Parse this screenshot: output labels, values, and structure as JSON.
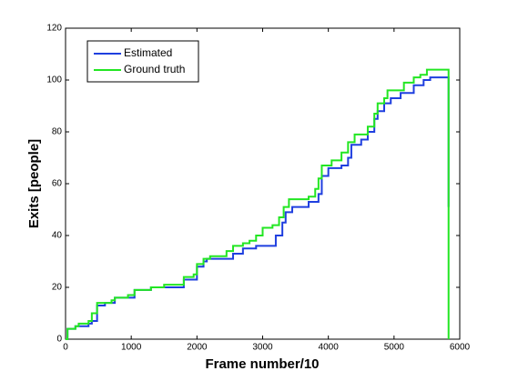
{
  "chart_data": {
    "type": "line",
    "xlabel": "Frame number/10",
    "ylabel": "Exits [people]",
    "xlim": [
      0,
      6000
    ],
    "ylim": [
      0,
      120
    ],
    "xticks": [
      0,
      1000,
      2000,
      3000,
      4000,
      5000,
      6000
    ],
    "yticks": [
      0,
      20,
      40,
      60,
      80,
      100,
      120
    ],
    "legend": "upper left",
    "series": [
      {
        "name": "Estimated",
        "color": "#1f3fdf",
        "x": [
          0,
          30,
          30,
          150,
          150,
          350,
          350,
          400,
          400,
          480,
          480,
          600,
          600,
          750,
          750,
          1050,
          1050,
          1300,
          1300,
          1800,
          1800,
          2000,
          2000,
          2100,
          2100,
          2150,
          2150,
          2550,
          2550,
          2700,
          2700,
          2900,
          2900,
          3200,
          3200,
          3300,
          3300,
          3350,
          3350,
          3450,
          3450,
          3700,
          3700,
          3850,
          3850,
          3900,
          3900,
          4000,
          4000,
          4200,
          4200,
          4300,
          4300,
          4350,
          4350,
          4500,
          4500,
          4600,
          4600,
          4700,
          4700,
          4750,
          4750,
          4850,
          4850,
          4950,
          4950,
          5100,
          5100,
          5300,
          5300,
          5450,
          5450,
          5550,
          5550,
          5830,
          5830
        ],
        "values": [
          0,
          0,
          4,
          4,
          5,
          5,
          6,
          6,
          7,
          7,
          13,
          13,
          14,
          14,
          16,
          16,
          19,
          19,
          20,
          20,
          23,
          23,
          28,
          28,
          30,
          30,
          31,
          31,
          33,
          33,
          35,
          35,
          36,
          36,
          40,
          40,
          45,
          45,
          49,
          49,
          51,
          51,
          53,
          53,
          56,
          56,
          63,
          63,
          66,
          66,
          67,
          67,
          70,
          70,
          75,
          75,
          77,
          77,
          80,
          80,
          85,
          85,
          88,
          88,
          91,
          91,
          93,
          93,
          95,
          95,
          98,
          98,
          100,
          100,
          101,
          101,
          51
        ]
      },
      {
        "name": "Ground truth",
        "color": "#22e622",
        "x": [
          0,
          30,
          30,
          150,
          150,
          200,
          200,
          350,
          350,
          400,
          400,
          480,
          480,
          700,
          700,
          750,
          750,
          950,
          950,
          1050,
          1050,
          1300,
          1300,
          1500,
          1500,
          1800,
          1800,
          1950,
          1950,
          2000,
          2000,
          2100,
          2100,
          2200,
          2200,
          2450,
          2450,
          2550,
          2550,
          2700,
          2700,
          2800,
          2800,
          2900,
          2900,
          3000,
          3000,
          3150,
          3150,
          3250,
          3250,
          3320,
          3320,
          3400,
          3400,
          3700,
          3700,
          3800,
          3800,
          3850,
          3850,
          3900,
          3900,
          4050,
          4050,
          4200,
          4200,
          4300,
          4300,
          4400,
          4400,
          4600,
          4600,
          4700,
          4700,
          4750,
          4750,
          4850,
          4850,
          4900,
          4900,
          5150,
          5150,
          5300,
          5300,
          5400,
          5400,
          5500,
          5500,
          5830,
          5830
        ],
        "values": [
          0,
          0,
          4,
          4,
          5,
          5,
          6,
          6,
          7,
          7,
          10,
          10,
          14,
          14,
          15,
          15,
          16,
          16,
          17,
          17,
          19,
          19,
          20,
          20,
          21,
          21,
          24,
          24,
          25,
          25,
          29,
          29,
          31,
          31,
          32,
          32,
          34,
          34,
          36,
          36,
          37,
          37,
          38,
          38,
          40,
          40,
          43,
          43,
          44,
          44,
          47,
          47,
          51,
          51,
          54,
          54,
          55,
          55,
          58,
          58,
          62,
          62,
          67,
          67,
          69,
          69,
          72,
          72,
          76,
          76,
          79,
          79,
          82,
          82,
          87,
          87,
          91,
          91,
          93,
          93,
          96,
          96,
          99,
          99,
          101,
          101,
          102,
          102,
          104,
          104,
          0
        ]
      }
    ]
  }
}
